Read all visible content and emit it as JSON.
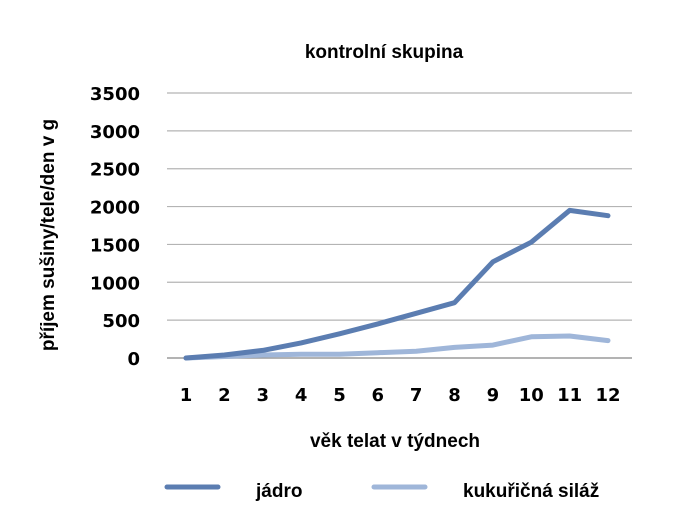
{
  "chart_data": {
    "type": "line",
    "title": "kontrolní skupina",
    "xlabel": "věk telat v týdnech",
    "ylabel": "příjem sušiny/tele/den v g",
    "categories": [
      "1",
      "2",
      "3",
      "4",
      "5",
      "6",
      "7",
      "8",
      "9",
      "10",
      "11",
      "12"
    ],
    "ylim": [
      0,
      3500
    ],
    "yticks": [
      0,
      500,
      1000,
      1500,
      2000,
      2500,
      3000,
      3500
    ],
    "grid": true,
    "legend_position": "bottom",
    "series": [
      {
        "name": "jádro",
        "color": "#5b7db1",
        "values": [
          0,
          40,
          100,
          200,
          320,
          450,
          590,
          730,
          1270,
          1530,
          1950,
          1880
        ]
      },
      {
        "name": "kukuřičná siláž",
        "color": "#9fb6d9",
        "values": [
          0,
          20,
          40,
          50,
          50,
          70,
          90,
          140,
          170,
          280,
          290,
          230
        ]
      }
    ]
  }
}
